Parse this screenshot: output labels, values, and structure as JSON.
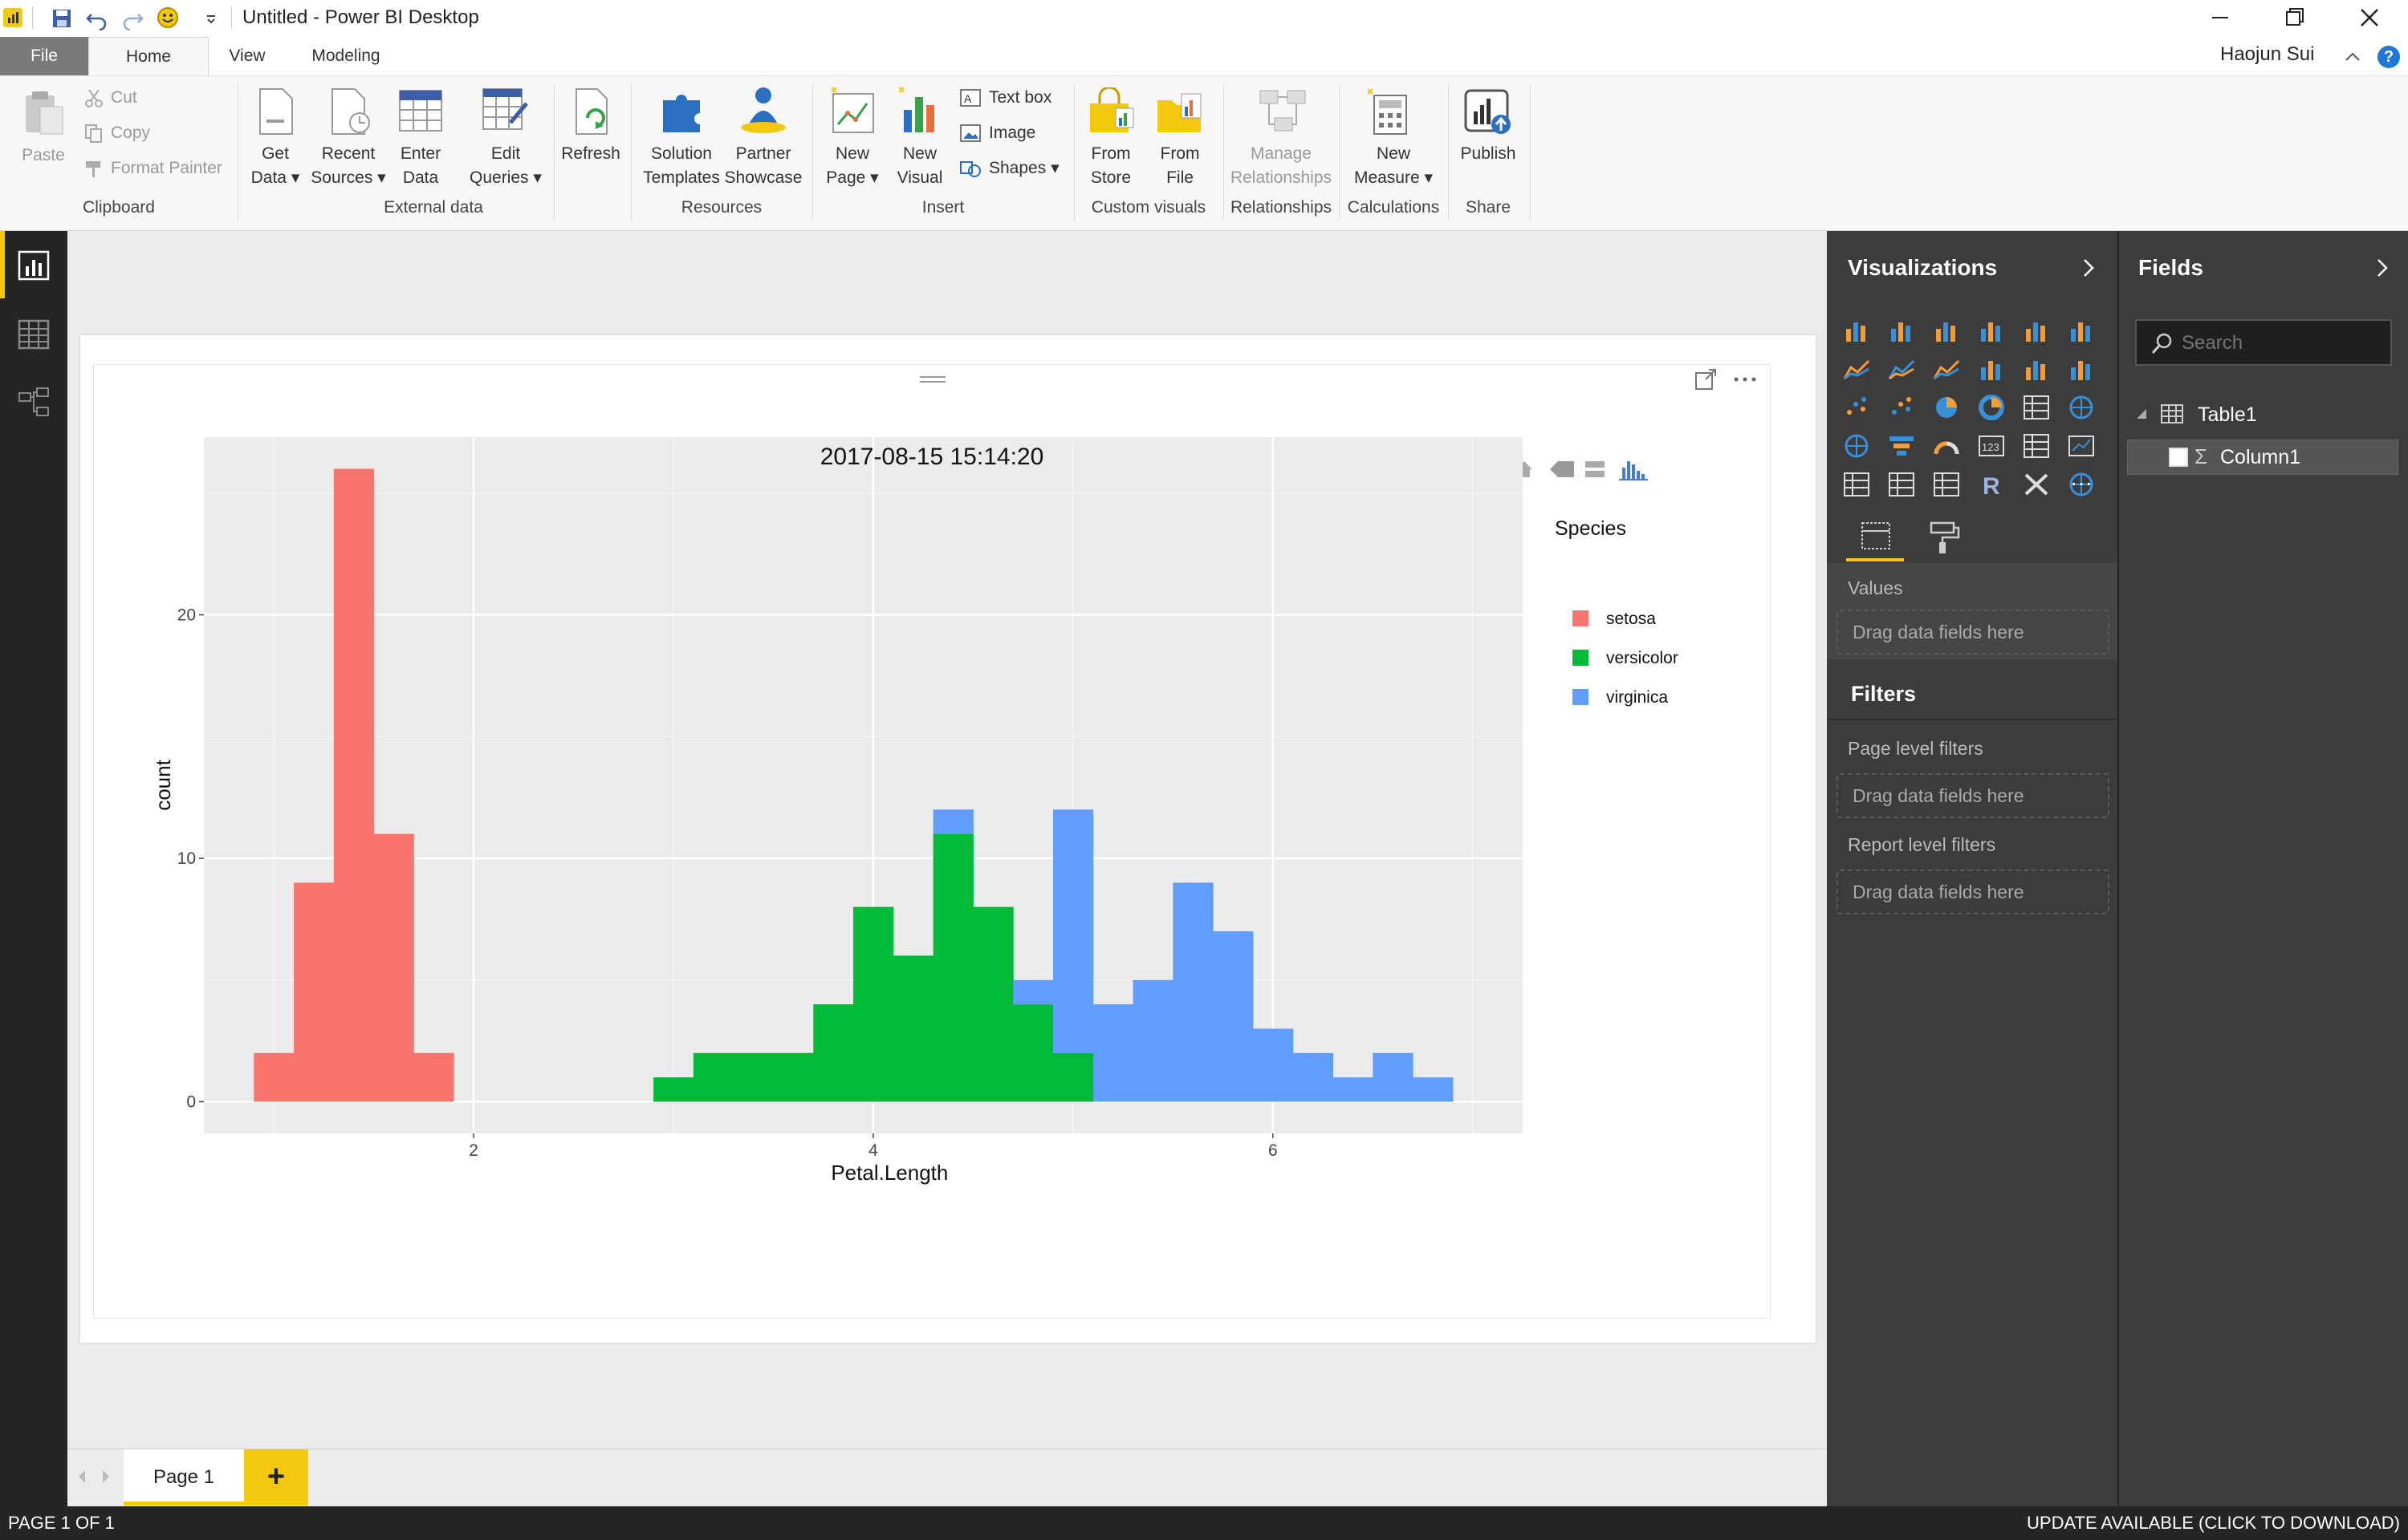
{
  "window": {
    "title": "Untitled - Power BI Desktop",
    "user": "Haojun Sui"
  },
  "tabs": [
    "File",
    "Home",
    "View",
    "Modeling"
  ],
  "ribbon": {
    "paste": "Paste",
    "cut": "Cut",
    "copy": "Copy",
    "format_painter": "Format Painter",
    "clipboard": "Clipboard",
    "get_data": [
      "Get",
      "Data"
    ],
    "recent_sources": [
      "Recent",
      "Sources"
    ],
    "enter_data": [
      "Enter",
      "Data"
    ],
    "edit_queries": [
      "Edit",
      "Queries"
    ],
    "refresh": "Refresh",
    "external_data": "External data",
    "solution_templates": [
      "Solution",
      "Templates"
    ],
    "partner_showcase": [
      "Partner",
      "Showcase"
    ],
    "resources": "Resources",
    "new_page": [
      "New",
      "Page"
    ],
    "new_visual": [
      "New",
      "Visual"
    ],
    "text_box": "Text box",
    "image": "Image",
    "shapes": "Shapes",
    "insert": "Insert",
    "from_store": [
      "From",
      "Store"
    ],
    "from_file": [
      "From",
      "File"
    ],
    "custom_visuals": "Custom visuals",
    "manage_relationships": [
      "Manage",
      "Relationships"
    ],
    "relationships": "Relationships",
    "new_measure": [
      "New",
      "Measure"
    ],
    "calculations": "Calculations",
    "publish": "Publish",
    "share": "Share"
  },
  "chart_data": {
    "type": "bar",
    "stacked": true,
    "title": "2017-08-15 15:14:20",
    "xlabel": "Petal.Length",
    "ylabel": "count",
    "xlim": [
      0.65,
      7.25
    ],
    "ylim": [
      -1.3,
      27.3
    ],
    "xticks": [
      "2",
      "4",
      "6"
    ],
    "yticks": [
      "0",
      "10",
      "20"
    ],
    "bin_width": 0.2,
    "legend_title": "Species",
    "legend_position": "right",
    "series": [
      {
        "name": "setosa",
        "color": "#F8766D",
        "bins": [
          [
            1.0,
            2
          ],
          [
            1.2,
            9
          ],
          [
            1.4,
            26
          ],
          [
            1.6,
            11
          ],
          [
            1.8,
            2
          ]
        ]
      },
      {
        "name": "versicolor",
        "color": "#00BA38",
        "bins": [
          [
            3.0,
            1
          ],
          [
            3.2,
            2
          ],
          [
            3.4,
            2
          ],
          [
            3.6,
            2
          ],
          [
            3.8,
            4
          ],
          [
            4.0,
            8
          ],
          [
            4.2,
            6
          ],
          [
            4.4,
            11
          ],
          [
            4.6,
            8
          ],
          [
            4.8,
            4
          ],
          [
            5.0,
            2
          ]
        ]
      },
      {
        "name": "virginica",
        "color": "#619CFF",
        "bins": [
          [
            4.4,
            1
          ],
          [
            4.8,
            1
          ],
          [
            5.0,
            10
          ],
          [
            5.2,
            4
          ],
          [
            5.4,
            5
          ],
          [
            5.6,
            9
          ],
          [
            5.8,
            7
          ],
          [
            6.0,
            3
          ],
          [
            6.2,
            2
          ],
          [
            6.4,
            1
          ],
          [
            6.6,
            2
          ],
          [
            6.8,
            1
          ]
        ]
      }
    ]
  },
  "visualizations": {
    "title": "Visualizations",
    "values_label": "Values",
    "drag_here": "Drag data fields here",
    "filters_title": "Filters",
    "page_filters": "Page level filters",
    "report_filters": "Report level filters",
    "more": "···"
  },
  "fields": {
    "title": "Fields",
    "search_placeholder": "Search",
    "table": "Table1",
    "column": "Column1"
  },
  "pages": {
    "tab": "Page 1",
    "add": "+"
  },
  "status": {
    "left": "PAGE 1 OF 1",
    "right": "UPDATE AVAILABLE (CLICK TO DOWNLOAD)"
  }
}
